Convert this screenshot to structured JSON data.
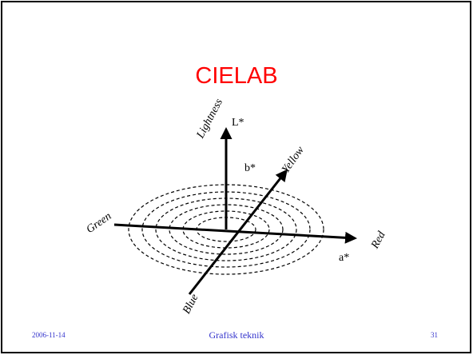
{
  "slide": {
    "title": "CIELAB",
    "diagram": {
      "lightness": "Lightness",
      "l_axis": "L*",
      "b_axis": "b*",
      "yellow": "Yellow",
      "green": "Green",
      "red": "Red",
      "a_axis": "a*",
      "blue": "Blue"
    },
    "footer": {
      "date": "2006-11-14",
      "center": "Grafisk teknik",
      "page": "31"
    }
  }
}
